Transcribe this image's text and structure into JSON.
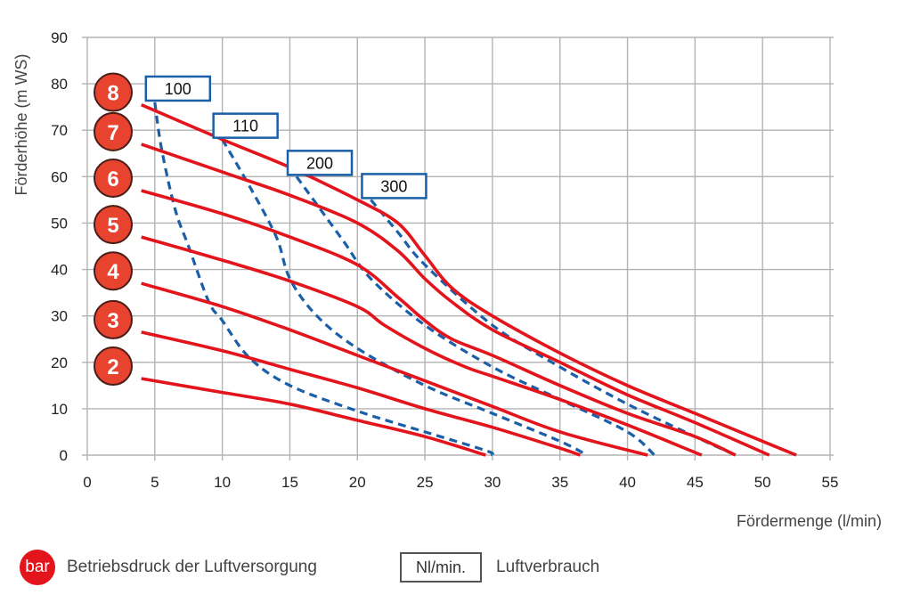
{
  "chart_data": {
    "type": "line",
    "xlabel": "Fördermenge (l/min)",
    "ylabel": "Förderhöhe (m WS)",
    "xlim": [
      0,
      55
    ],
    "ylim": [
      0,
      90
    ],
    "xticks": [
      0,
      5,
      10,
      15,
      20,
      25,
      30,
      35,
      40,
      45,
      50,
      55
    ],
    "yticks": [
      0,
      10,
      20,
      30,
      40,
      50,
      60,
      70,
      80,
      90
    ],
    "grid": true,
    "series": [
      {
        "name": "8",
        "kind": "pressure",
        "color": "#e3141b",
        "points": [
          [
            4,
            75.5
          ],
          [
            10,
            68
          ],
          [
            15,
            62
          ],
          [
            20,
            55
          ],
          [
            23,
            50
          ],
          [
            25,
            43
          ],
          [
            27,
            36
          ],
          [
            30,
            30
          ],
          [
            35,
            22
          ],
          [
            40,
            15
          ],
          [
            45,
            9
          ],
          [
            50,
            3
          ],
          [
            52.5,
            0
          ]
        ]
      },
      {
        "name": "7",
        "kind": "pressure",
        "color": "#e3141b",
        "points": [
          [
            4,
            67
          ],
          [
            10,
            61
          ],
          [
            15,
            56
          ],
          [
            20,
            50
          ],
          [
            23,
            44
          ],
          [
            25,
            38
          ],
          [
            27,
            33
          ],
          [
            30,
            27
          ],
          [
            35,
            20
          ],
          [
            40,
            13
          ],
          [
            45,
            7
          ],
          [
            50.5,
            0
          ]
        ]
      },
      {
        "name": "6",
        "kind": "pressure",
        "color": "#e3141b",
        "points": [
          [
            4,
            57
          ],
          [
            10,
            52
          ],
          [
            15,
            47
          ],
          [
            20,
            41
          ],
          [
            23,
            34
          ],
          [
            25,
            29
          ],
          [
            27,
            25
          ],
          [
            30,
            21.5
          ],
          [
            35,
            15
          ],
          [
            40,
            9
          ],
          [
            45,
            4
          ],
          [
            48,
            0
          ]
        ]
      },
      {
        "name": "5",
        "kind": "pressure",
        "color": "#e3141b",
        "points": [
          [
            4,
            47
          ],
          [
            10,
            42
          ],
          [
            15,
            37.5
          ],
          [
            20,
            32
          ],
          [
            22,
            28
          ],
          [
            25,
            23
          ],
          [
            28,
            19
          ],
          [
            30,
            17
          ],
          [
            35,
            12
          ],
          [
            40,
            6.5
          ],
          [
            45.5,
            0
          ]
        ]
      },
      {
        "name": "4",
        "kind": "pressure",
        "color": "#e3141b",
        "points": [
          [
            4,
            37
          ],
          [
            10,
            32
          ],
          [
            15,
            27
          ],
          [
            20,
            21.5
          ],
          [
            25,
            16
          ],
          [
            30,
            10.5
          ],
          [
            35,
            5
          ],
          [
            41.5,
            0
          ]
        ]
      },
      {
        "name": "3",
        "kind": "pressure",
        "color": "#e3141b",
        "points": [
          [
            4,
            26.5
          ],
          [
            10,
            22.5
          ],
          [
            15,
            18.5
          ],
          [
            20,
            14.5
          ],
          [
            25,
            10
          ],
          [
            30,
            6
          ],
          [
            35,
            1.5
          ],
          [
            36.5,
            0
          ]
        ]
      },
      {
        "name": "2",
        "kind": "pressure",
        "color": "#e3141b",
        "points": [
          [
            4,
            16.5
          ],
          [
            10,
            13.5
          ],
          [
            15,
            11
          ],
          [
            20,
            7.5
          ],
          [
            25,
            4
          ],
          [
            29.5,
            0
          ]
        ]
      },
      {
        "name": "100",
        "kind": "air",
        "color": "#1a5fa8",
        "points": [
          [
            5,
            76
          ],
          [
            5.5,
            66
          ],
          [
            6.5,
            53
          ],
          [
            7.5,
            45
          ],
          [
            9,
            33
          ],
          [
            10,
            29
          ],
          [
            12,
            21
          ],
          [
            15,
            15
          ],
          [
            20,
            9.5
          ],
          [
            25,
            5
          ],
          [
            29.5,
            1
          ],
          [
            30,
            0
          ]
        ]
      },
      {
        "name": "110",
        "kind": "air",
        "color": "#1a5fa8",
        "points": [
          [
            10,
            68
          ],
          [
            12,
            58
          ],
          [
            14,
            47
          ],
          [
            15,
            38
          ],
          [
            17,
            30
          ],
          [
            20,
            23
          ],
          [
            25,
            15
          ],
          [
            30,
            9
          ],
          [
            35,
            3
          ],
          [
            37,
            0
          ]
        ]
      },
      {
        "name": "200",
        "kind": "air",
        "color": "#1a5fa8",
        "points": [
          [
            15.5,
            60
          ],
          [
            17,
            54
          ],
          [
            19,
            46
          ],
          [
            21,
            38
          ],
          [
            25,
            28
          ],
          [
            30,
            19
          ],
          [
            35,
            12
          ],
          [
            40,
            5
          ],
          [
            42,
            0
          ]
        ]
      },
      {
        "name": "300",
        "kind": "air",
        "color": "#1a5fa8",
        "points": [
          [
            21,
            55
          ],
          [
            23,
            48
          ],
          [
            25,
            41
          ],
          [
            30,
            28
          ],
          [
            35,
            19
          ],
          [
            40,
            11
          ],
          [
            45,
            4
          ],
          [
            48,
            0
          ]
        ]
      }
    ]
  },
  "pressure_markers": [
    "8",
    "7",
    "6",
    "5",
    "4",
    "3",
    "2"
  ],
  "air_labels": [
    "100",
    "110",
    "200",
    "300"
  ],
  "legend": {
    "bar_icon": "bar",
    "bar_text": "Betriebsdruck der Luftversorgung",
    "box_text": "Nl/min.",
    "box_desc": "Luftverbrauch"
  },
  "colors": {
    "red": "#e3141b",
    "blue": "#1a5fa8",
    "grid": "#b3b3b3"
  }
}
